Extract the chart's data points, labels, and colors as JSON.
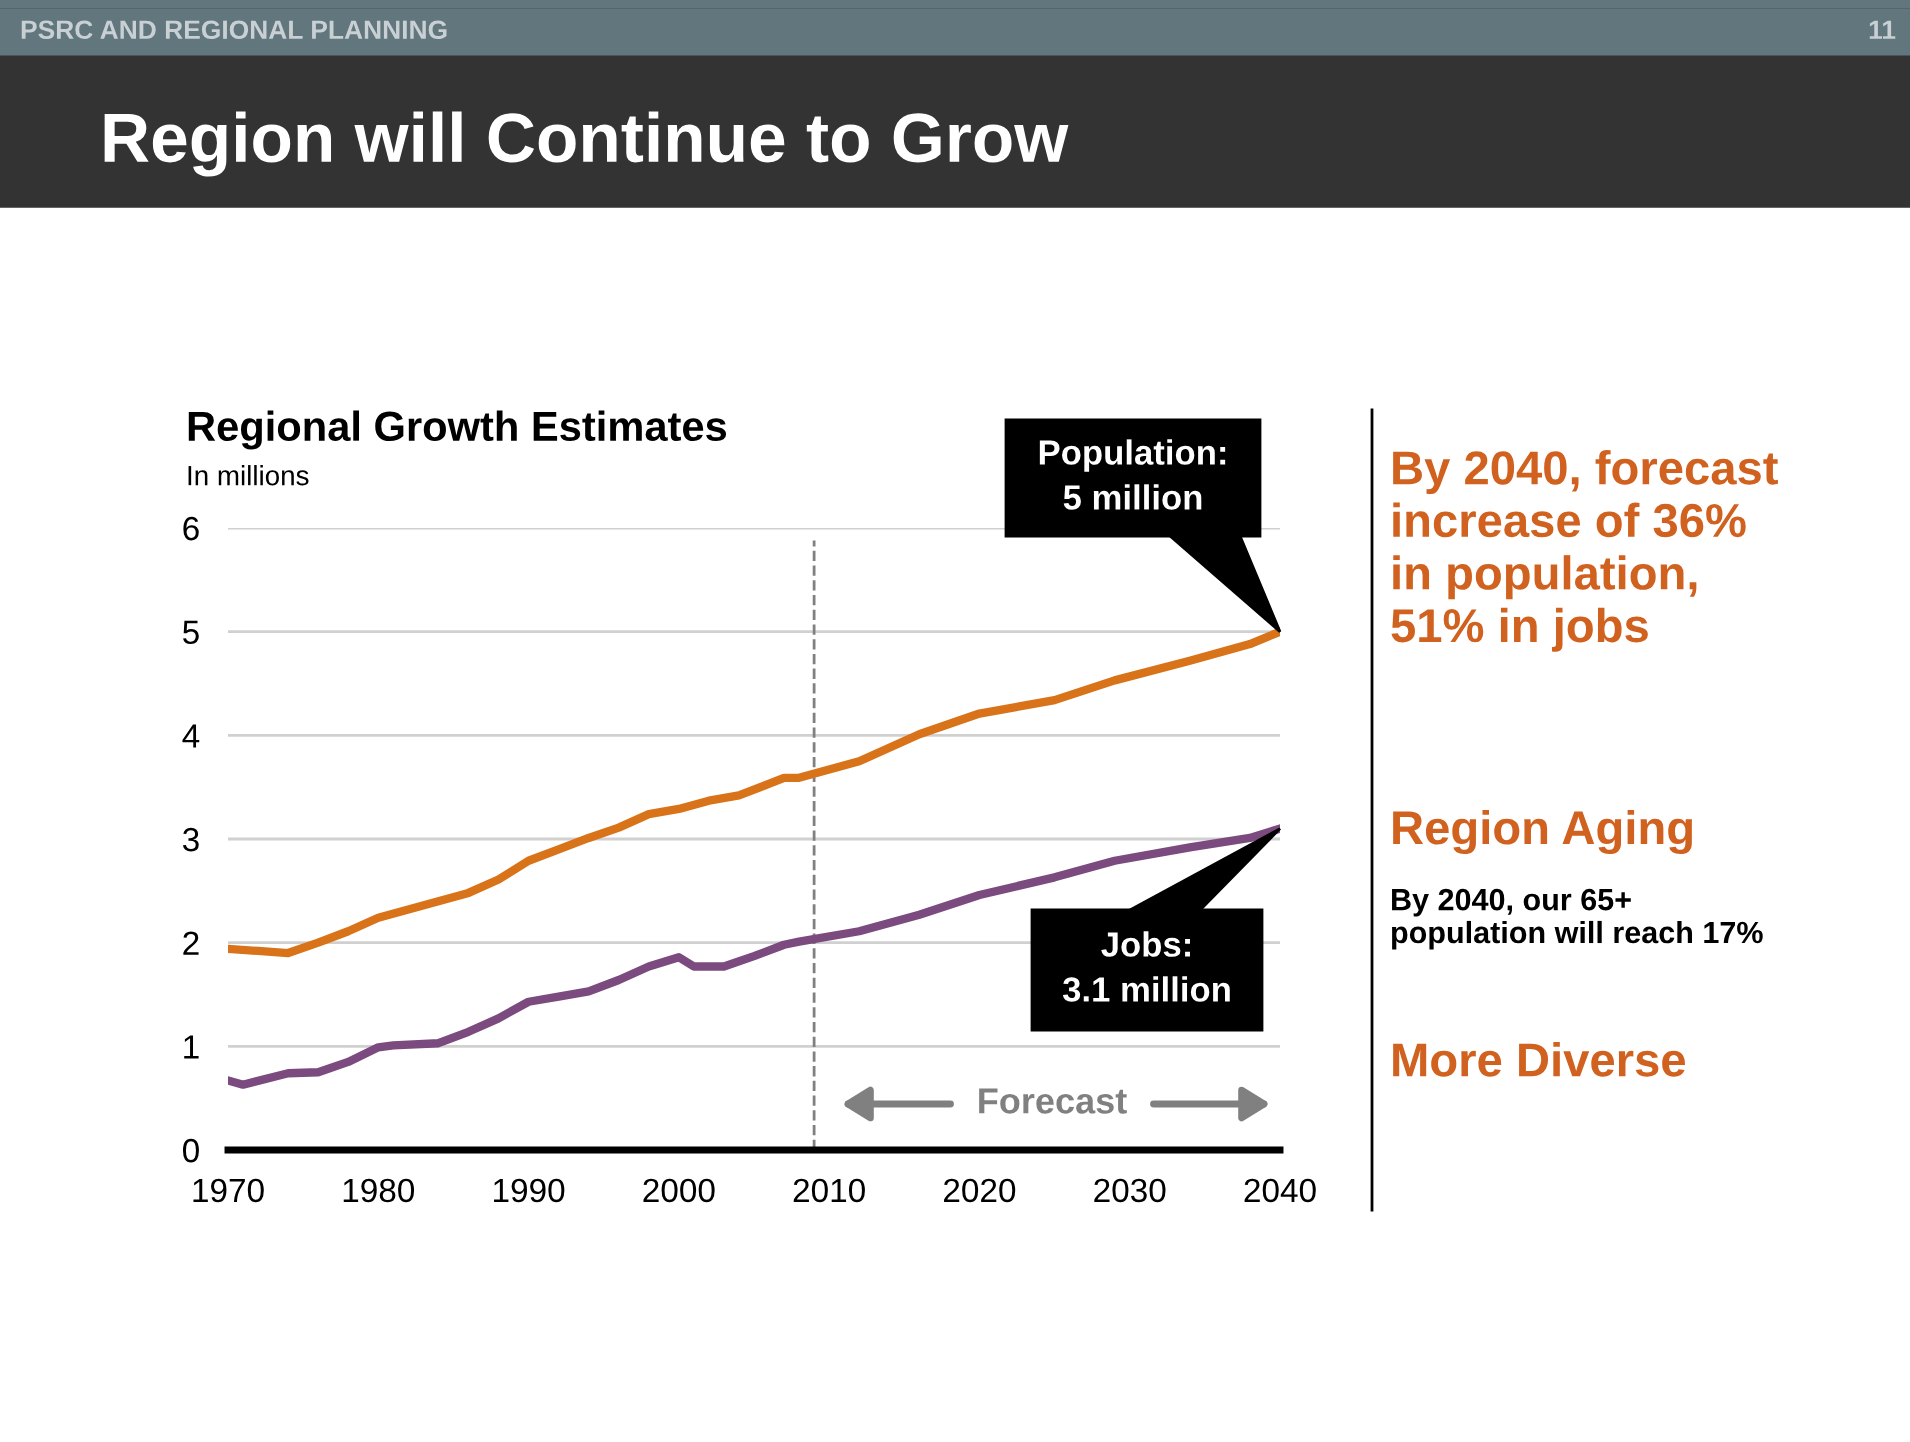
{
  "chart_data": {
    "type": "line",
    "title": "Regional Growth Estimates",
    "subtitle": "In millions",
    "xlim": [
      1970,
      2040
    ],
    "xticks": [
      1970,
      1980,
      1990,
      2000,
      2010,
      2020,
      2030,
      2040
    ],
    "ylim": [
      0,
      6
    ],
    "yticks": [
      0,
      1,
      2,
      3,
      4,
      5,
      6
    ],
    "grid": "y",
    "legend": false,
    "marker": "none",
    "line_style": "solid",
    "series": [
      {
        "color": "#d9731a",
        "x": [
          1970,
          1972,
          1974,
          1976,
          1978,
          1980,
          1982,
          1984,
          1986,
          1988,
          1990,
          1992,
          1994,
          1996,
          1998,
          2000,
          2002,
          2004,
          2007,
          2008,
          2012,
          2016,
          2020,
          2025,
          2029,
          2034,
          2038,
          2040
        ],
        "values": [
          1.94,
          1.92,
          1.9,
          2.0,
          2.11,
          2.24,
          2.32,
          2.4,
          2.48,
          2.61,
          2.79,
          2.9,
          3.01,
          3.11,
          3.24,
          3.29,
          3.37,
          3.42,
          3.59,
          3.59,
          3.75,
          4.01,
          4.21,
          4.34,
          4.53,
          4.72,
          4.88,
          5.0
        ]
      },
      {
        "color": "#7b4a7e",
        "x": [
          1970,
          1971,
          1974,
          1976,
          1978,
          1980,
          1981,
          1984,
          1986,
          1988,
          1990,
          1992,
          1994,
          1996,
          1998,
          2000,
          2001,
          2003,
          2005,
          2007,
          2008,
          2012,
          2016,
          2020,
          2025,
          2029,
          2034,
          2038,
          2040
        ],
        "values": [
          0.67,
          0.63,
          0.74,
          0.75,
          0.85,
          0.99,
          1.01,
          1.03,
          1.14,
          1.27,
          1.43,
          1.48,
          1.53,
          1.64,
          1.77,
          1.86,
          1.77,
          1.77,
          1.87,
          1.98,
          2.01,
          2.11,
          2.27,
          2.46,
          2.63,
          2.79,
          2.92,
          3.01,
          3.1
        ]
      }
    ],
    "ref_lines": [
      {
        "axis": "x",
        "value": 2009,
        "label": null,
        "color": "#808080",
        "line_style": "dashed"
      }
    ],
    "annotations": [
      "PSRC AND REGIONAL PLANNING",
      "11",
      "Region will Continue to Grow",
      "Population:\n5 million",
      "Jobs:\n3.1 million",
      "Forecast",
      "By 2040, forecast\nincrease of 36%\nin population,\n51% in jobs",
      "Region Aging",
      "By 2040, our 65+\npopulation will reach 17%",
      "More Diverse"
    ]
  }
}
